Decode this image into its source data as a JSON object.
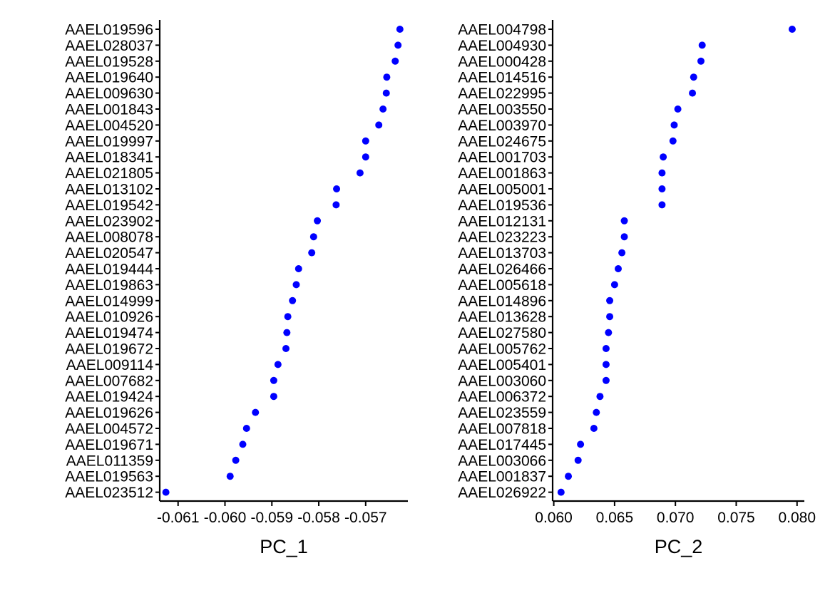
{
  "figure": {
    "point_color": "#0000ff",
    "axis_color": "#000000",
    "background": "#ffffff"
  },
  "chart_data": [
    {
      "type": "scatter",
      "xlabel": "PC_1",
      "ylabel": "",
      "xlim": [
        -0.0613,
        -0.0561
      ],
      "xticks": [
        -0.061,
        -0.06,
        -0.059,
        -0.058,
        -0.057
      ],
      "xtick_labels": [
        "-0.061",
        "-0.060",
        "-0.059",
        "-0.058",
        "-0.057"
      ],
      "grid": false,
      "points": [
        {
          "gene": "AAEL019596",
          "value": -0.05627
        },
        {
          "gene": "AAEL028037",
          "value": -0.05631
        },
        {
          "gene": "AAEL019528",
          "value": -0.05637
        },
        {
          "gene": "AAEL019640",
          "value": -0.05655
        },
        {
          "gene": "AAEL009630",
          "value": -0.05656
        },
        {
          "gene": "AAEL001843",
          "value": -0.05663
        },
        {
          "gene": "AAEL004520",
          "value": -0.05672
        },
        {
          "gene": "AAEL019997",
          "value": -0.057
        },
        {
          "gene": "AAEL018341",
          "value": -0.057
        },
        {
          "gene": "AAEL021805",
          "value": -0.05712
        },
        {
          "gene": "AAEL013102",
          "value": -0.05762
        },
        {
          "gene": "AAEL019542",
          "value": -0.05763
        },
        {
          "gene": "AAEL023902",
          "value": -0.05803
        },
        {
          "gene": "AAEL008078",
          "value": -0.05811
        },
        {
          "gene": "AAEL020547",
          "value": -0.05815
        },
        {
          "gene": "AAEL019444",
          "value": -0.05843
        },
        {
          "gene": "AAEL019863",
          "value": -0.05848
        },
        {
          "gene": "AAEL014999",
          "value": -0.05856
        },
        {
          "gene": "AAEL010926",
          "value": -0.05866
        },
        {
          "gene": "AAEL019474",
          "value": -0.05868
        },
        {
          "gene": "AAEL019672",
          "value": -0.0587
        },
        {
          "gene": "AAEL009114",
          "value": -0.05887
        },
        {
          "gene": "AAEL007682",
          "value": -0.05896
        },
        {
          "gene": "AAEL019424",
          "value": -0.05896
        },
        {
          "gene": "AAEL019626",
          "value": -0.05935
        },
        {
          "gene": "AAEL004572",
          "value": -0.05954
        },
        {
          "gene": "AAEL019671",
          "value": -0.05962
        },
        {
          "gene": "AAEL011359",
          "value": -0.05977
        },
        {
          "gene": "AAEL019563",
          "value": -0.05989
        },
        {
          "gene": "AAEL023512",
          "value": -0.06126
        }
      ]
    },
    {
      "type": "scatter",
      "xlabel": "PC_2",
      "ylabel": "",
      "xlim": [
        0.0602,
        0.0806
      ],
      "xticks": [
        0.06,
        0.065,
        0.07,
        0.075,
        0.08
      ],
      "xtick_labels": [
        "0.060",
        "0.065",
        "0.070",
        "0.075",
        "0.080"
      ],
      "grid": false,
      "points": [
        {
          "gene": "AAEL004798",
          "value": 0.0796
        },
        {
          "gene": "AAEL004930",
          "value": 0.0722
        },
        {
          "gene": "AAEL000428",
          "value": 0.0721
        },
        {
          "gene": "AAEL014516",
          "value": 0.0715
        },
        {
          "gene": "AAEL022995",
          "value": 0.0714
        },
        {
          "gene": "AAEL003550",
          "value": 0.0702
        },
        {
          "gene": "AAEL003970",
          "value": 0.0699
        },
        {
          "gene": "AAEL024675",
          "value": 0.0698
        },
        {
          "gene": "AAEL001703",
          "value": 0.069
        },
        {
          "gene": "AAEL001863",
          "value": 0.0689
        },
        {
          "gene": "AAEL005001",
          "value": 0.0689
        },
        {
          "gene": "AAEL019536",
          "value": 0.0689
        },
        {
          "gene": "AAEL012131",
          "value": 0.0658
        },
        {
          "gene": "AAEL023223",
          "value": 0.0658
        },
        {
          "gene": "AAEL013703",
          "value": 0.0656
        },
        {
          "gene": "AAEL026466",
          "value": 0.0653
        },
        {
          "gene": "AAEL005618",
          "value": 0.065
        },
        {
          "gene": "AAEL014896",
          "value": 0.0646
        },
        {
          "gene": "AAEL013628",
          "value": 0.0646
        },
        {
          "gene": "AAEL027580",
          "value": 0.0645
        },
        {
          "gene": "AAEL005762",
          "value": 0.0643
        },
        {
          "gene": "AAEL005401",
          "value": 0.0643
        },
        {
          "gene": "AAEL003060",
          "value": 0.0643
        },
        {
          "gene": "AAEL006372",
          "value": 0.0638
        },
        {
          "gene": "AAEL023559",
          "value": 0.0635
        },
        {
          "gene": "AAEL007818",
          "value": 0.0633
        },
        {
          "gene": "AAEL017445",
          "value": 0.0622
        },
        {
          "gene": "AAEL003066",
          "value": 0.062
        },
        {
          "gene": "AAEL001837",
          "value": 0.0612
        },
        {
          "gene": "AAEL026922",
          "value": 0.0606
        }
      ]
    }
  ]
}
